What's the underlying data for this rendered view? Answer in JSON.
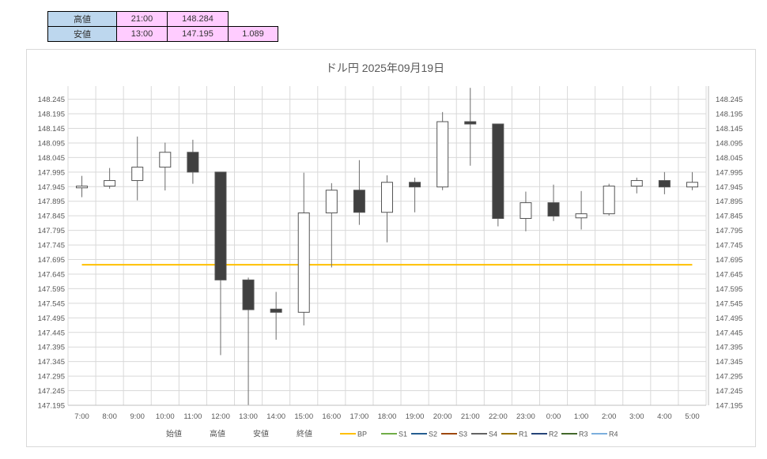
{
  "summary_table": {
    "rows": [
      {
        "label": "高値",
        "time": "21:00",
        "price": "148.284",
        "diff": ""
      },
      {
        "label": "安値",
        "time": "13:00",
        "price": "147.195",
        "diff": "1.089"
      }
    ]
  },
  "chart_data": {
    "type": "candlestick",
    "title": "ドル円 2025年09月19日",
    "categories": [
      "7:00",
      "8:00",
      "9:00",
      "10:00",
      "11:00",
      "12:00",
      "13:00",
      "14:00",
      "15:00",
      "16:00",
      "17:00",
      "18:00",
      "19:00",
      "20:00",
      "21:00",
      "22:00",
      "23:00",
      "0:00",
      "1:00",
      "2:00",
      "3:00",
      "4:00",
      "5:00"
    ],
    "open": [
      147.941,
      147.947,
      147.966,
      148.012,
      148.063,
      147.995,
      147.625,
      147.525,
      147.514,
      147.855,
      147.933,
      147.857,
      147.96,
      147.944,
      148.168,
      148.16,
      147.836,
      147.89,
      147.838,
      147.852,
      147.947,
      147.966,
      147.944
    ],
    "high": [
      147.982,
      148.009,
      148.117,
      148.096,
      148.106,
      147.995,
      147.633,
      147.584,
      147.993,
      147.957,
      148.036,
      147.984,
      147.976,
      148.201,
      148.284,
      148.16,
      147.928,
      147.952,
      147.93,
      147.955,
      147.976,
      147.995,
      147.995
    ],
    "low": [
      147.909,
      147.938,
      147.898,
      147.932,
      147.955,
      147.367,
      147.195,
      147.42,
      147.469,
      147.668,
      147.814,
      147.754,
      147.857,
      147.933,
      148.017,
      147.809,
      147.792,
      147.827,
      147.798,
      147.846,
      147.922,
      147.919,
      147.933
    ],
    "close": [
      147.947,
      147.966,
      148.012,
      148.063,
      147.995,
      147.625,
      147.523,
      147.514,
      147.855,
      147.933,
      147.857,
      147.96,
      147.944,
      148.168,
      148.16,
      147.836,
      147.89,
      147.844,
      147.852,
      147.947,
      147.966,
      147.944,
      147.96
    ],
    "lines": [
      {
        "name": "BP",
        "value": 147.677
      }
    ],
    "ylim": [
      147.195,
      148.29
    ],
    "yticks": [
      "147.195",
      "147.245",
      "147.295",
      "147.345",
      "147.395",
      "147.445",
      "147.495",
      "147.545",
      "147.595",
      "147.645",
      "147.695",
      "147.745",
      "147.795",
      "147.845",
      "147.895",
      "147.945",
      "147.995",
      "148.045",
      "148.095",
      "148.145",
      "148.195",
      "148.245"
    ],
    "y_axis_both_sides": true,
    "grid": true,
    "up_color": "#FFFFFF",
    "down_color": "#404040",
    "legend_position": "bottom",
    "legend": [
      {
        "name": "始値",
        "color": ""
      },
      {
        "name": "高値",
        "color": ""
      },
      {
        "name": "安値",
        "color": ""
      },
      {
        "name": "終値",
        "color": ""
      },
      {
        "name": "BP",
        "color": "#FFC000"
      },
      {
        "name": "S1",
        "color": "#70AD47"
      },
      {
        "name": "S2",
        "color": "#255E91"
      },
      {
        "name": "S3",
        "color": "#9E480E"
      },
      {
        "name": "S4",
        "color": "#636363"
      },
      {
        "name": "R1",
        "color": "#997300"
      },
      {
        "name": "R2",
        "color": "#264478"
      },
      {
        "name": "R3",
        "color": "#43682B"
      },
      {
        "name": "R4",
        "color": "#7CAFDD"
      }
    ]
  }
}
